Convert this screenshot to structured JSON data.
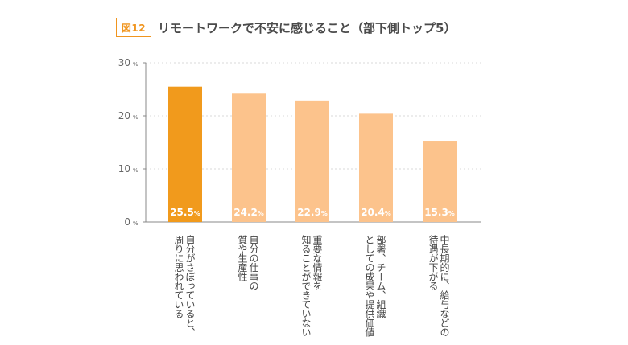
{
  "figure": {
    "badge": "図12",
    "title": "リモートワークで不安に感じること（部下側トップ5）"
  },
  "chart_data": {
    "type": "bar",
    "title": "リモートワークで不安に感じること（部下側トップ5）",
    "categories": [
      "自分がさぼっていると、周りに思われている",
      "自分の仕事の質や生産性",
      "重要な情報を知ることができていない",
      "部署、チーム、組織としての成果や提供価値",
      "中長期的に、給与などの待遇が下がる"
    ],
    "category_lines": [
      [
        "自分がさぼっていると、",
        "周りに思われている"
      ],
      [
        "自分の仕事の",
        "質や生産性"
      ],
      [
        "重要な情報を",
        "知ることができていない"
      ],
      [
        "部署、チーム、組織",
        "としての成果や提供価値"
      ],
      [
        "中長期的に、給与などの",
        "待遇が下がる"
      ]
    ],
    "values": [
      25.5,
      24.2,
      22.9,
      20.4,
      15.3
    ],
    "value_labels": [
      "25.5",
      "24.2",
      "22.9",
      "20.4",
      "15.3"
    ],
    "value_unit": "%",
    "ylim": [
      0,
      30
    ],
    "yticks": [
      {
        "value": 0,
        "label": "0"
      },
      {
        "value": 10,
        "label": "10"
      },
      {
        "value": 20,
        "label": "20"
      },
      {
        "value": 30,
        "label": "30"
      }
    ],
    "ytick_unit": "%",
    "grid": true,
    "colors": {
      "highlight": "#f19a1c",
      "bar": "#fcc38c",
      "accent": "#f0951f",
      "axis": "#888888",
      "tick_text": "#666666",
      "label_text": "#444444",
      "grid": "#d8d8d8"
    },
    "highlight_index": 0
  }
}
